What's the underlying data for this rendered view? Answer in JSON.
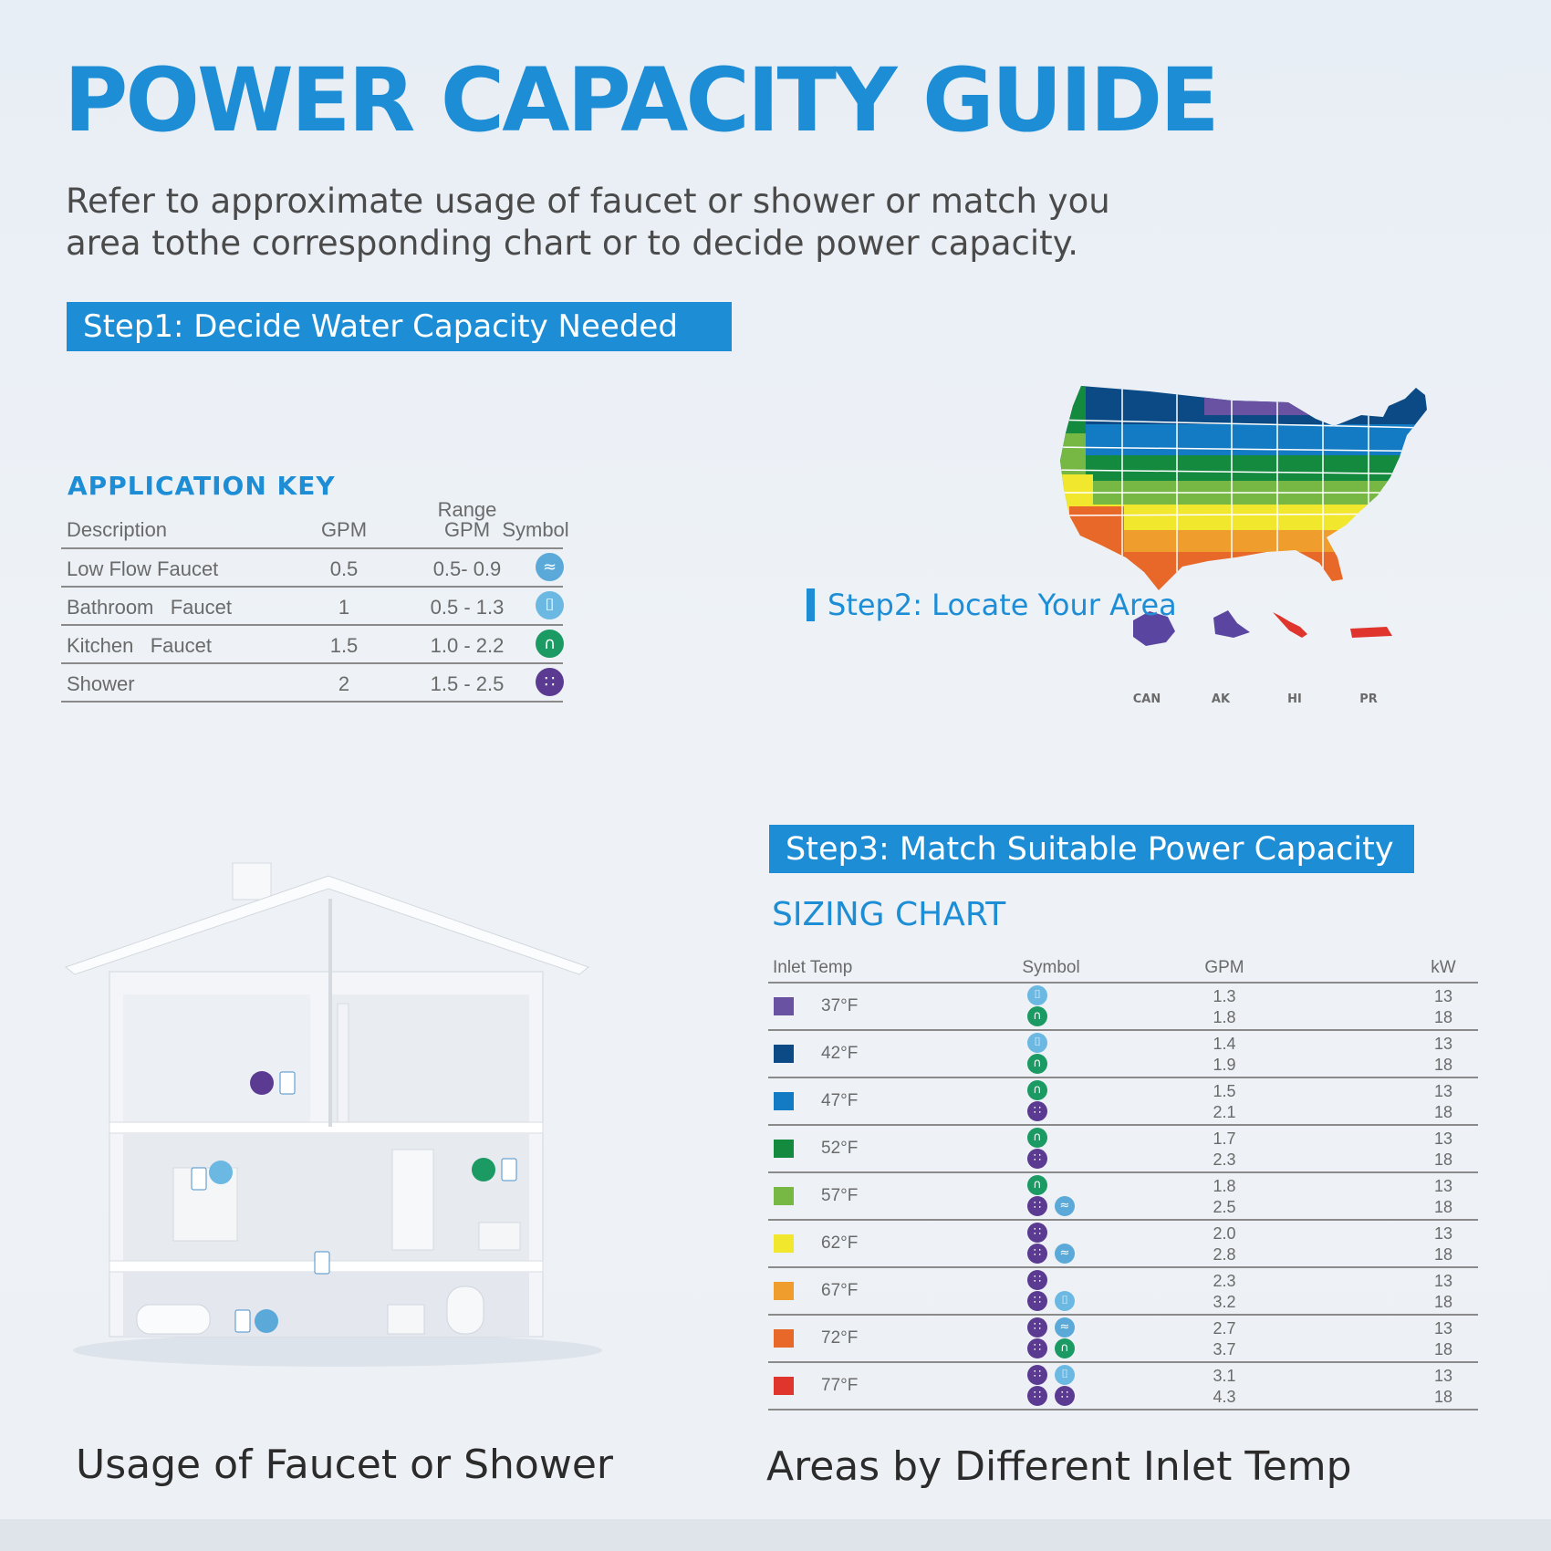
{
  "title": "POWER CAPACITY GUIDE",
  "intro": "Refer to approximate usage of faucet or shower or match you area tothe corresponding chart or to decide power capacity.",
  "step1": "Step1: Decide Water Capacity Needed",
  "step2": "Step2: Locate Your Area",
  "step3": "Step3: Match Suitable Power Capacity",
  "application_key": {
    "title": "APPLICATION KEY",
    "headers": {
      "description": "Description",
      "gpm": "GPM",
      "range_top": "Range",
      "range_bottom": "GPM",
      "symbol": "Symbol"
    },
    "rows": [
      {
        "description": "Low Flow Faucet",
        "gpm": "0.5",
        "range": "0.5- 0.9",
        "symbol": "low-flow-faucet-icon"
      },
      {
        "description": "Bathroom   Faucet",
        "gpm": "1",
        "range": "0.5 - 1.3",
        "symbol": "bathroom-faucet-icon"
      },
      {
        "description": "Kitchen   Faucet",
        "gpm": "1.5",
        "range": "1.0 - 2.2",
        "symbol": "kitchen-faucet-icon"
      },
      {
        "description": "Shower",
        "gpm": "2",
        "range": "1.5 - 2.5",
        "symbol": "shower-icon"
      }
    ]
  },
  "map": {
    "territory_labels": [
      "CAN",
      "AK",
      "HI",
      "PR"
    ]
  },
  "sizing_chart": {
    "title": "SIZING CHART",
    "headers": {
      "inlet_temp": "Inlet Temp",
      "symbol": "Symbol",
      "gpm": "GPM",
      "kw": "kW"
    },
    "rows": [
      {
        "temp": "37°F",
        "color": "#6a52a3",
        "symbols": [
          [
            "bathroom"
          ],
          [
            "kitchen"
          ]
        ],
        "gpm": [
          "1.3",
          "1.8"
        ],
        "kw": [
          "13",
          "18"
        ]
      },
      {
        "temp": "42°F",
        "color": "#0b4a85",
        "symbols": [
          [
            "bathroom"
          ],
          [
            "kitchen"
          ]
        ],
        "gpm": [
          "1.4",
          "1.9"
        ],
        "kw": [
          "13",
          "18"
        ]
      },
      {
        "temp": "47°F",
        "color": "#137bc4",
        "symbols": [
          [
            "kitchen"
          ],
          [
            "shower"
          ]
        ],
        "gpm": [
          "1.5",
          "2.1"
        ],
        "kw": [
          "13",
          "18"
        ]
      },
      {
        "temp": "52°F",
        "color": "#148a3e",
        "symbols": [
          [
            "kitchen"
          ],
          [
            "shower"
          ]
        ],
        "gpm": [
          "1.7",
          "2.3"
        ],
        "kw": [
          "13",
          "18"
        ]
      },
      {
        "temp": "57°F",
        "color": "#76b843",
        "symbols": [
          [
            "kitchen"
          ],
          [
            "shower",
            "low"
          ]
        ],
        "gpm": [
          "1.8",
          "2.5"
        ],
        "kw": [
          "13",
          "18"
        ]
      },
      {
        "temp": "62°F",
        "color": "#f1e72d",
        "symbols": [
          [
            "shower"
          ],
          [
            "shower",
            "low"
          ]
        ],
        "gpm": [
          "2.0",
          "2.8"
        ],
        "kw": [
          "13",
          "18"
        ]
      },
      {
        "temp": "67°F",
        "color": "#ef9d2c",
        "symbols": [
          [
            "shower"
          ],
          [
            "shower",
            "bathroom"
          ]
        ],
        "gpm": [
          "2.3",
          "3.2"
        ],
        "kw": [
          "13",
          "18"
        ]
      },
      {
        "temp": "72°F",
        "color": "#e8682a",
        "symbols": [
          [
            "shower",
            "low"
          ],
          [
            "shower",
            "kitchen"
          ]
        ],
        "gpm": [
          "2.7",
          "3.7"
        ],
        "kw": [
          "13",
          "18"
        ]
      },
      {
        "temp": "77°F",
        "color": "#e0352c",
        "symbols": [
          [
            "shower",
            "bathroom"
          ],
          [
            "shower",
            "shower"
          ]
        ],
        "gpm": [
          "3.1",
          "4.3"
        ],
        "kw": [
          "13",
          "18"
        ]
      }
    ]
  },
  "caption_left": "Usage of Faucet or Shower",
  "caption_right": "Areas by Different Inlet Temp",
  "colors": {
    "accent": "#1d8ed6",
    "text": "#4a4a4a"
  }
}
